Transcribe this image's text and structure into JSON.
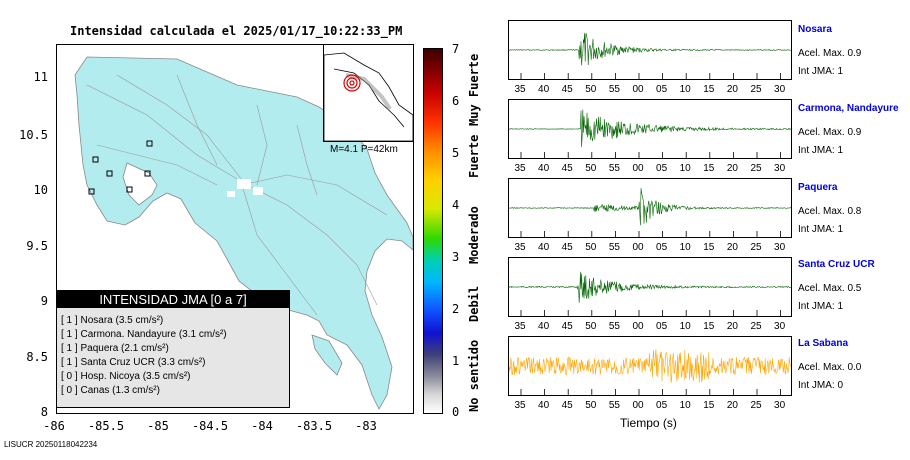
{
  "title": "Intensidad calculada el 2025/01/17_10:22:33_PM",
  "map": {
    "y_ticks": [
      "11",
      "10.5",
      "10",
      "9.5",
      "9",
      "8.5",
      "8"
    ],
    "x_ticks": [
      "-86",
      "-85.5",
      "-85",
      "-84.5",
      "-84",
      "-83.5",
      "-83"
    ],
    "land_color": "#b3ecee",
    "inset_caption": "M=4.1 P=42km"
  },
  "legend": {
    "title": "INTENSIDAD JMA [0 a 7]",
    "rows": [
      {
        "code": "[ 1 ]",
        "text": "Nosara (3.5 cm/s²)"
      },
      {
        "code": "[ 1 ]",
        "text": "Carmona. Nandayure (3.1 cm/s²)"
      },
      {
        "code": "[ 1 ]",
        "text": "Paquera (2.1 cm/s²)"
      },
      {
        "code": "[ 1 ]",
        "text": "Santa Cruz UCR (3.3 cm/s²)"
      },
      {
        "code": "[ 0 ]",
        "text": "Hosp. Nicoya (3.5 cm/s²)"
      },
      {
        "code": "[ 0 ]",
        "text": "Canas (1.3 cm/s²)"
      }
    ]
  },
  "colorbar": {
    "ticks": [
      "7",
      "6",
      "5",
      "4",
      "3",
      "2",
      "1",
      "0"
    ],
    "labels": [
      "Muy Fuerte",
      "Fuerte",
      "Moderado",
      "Debil",
      "No sentido"
    ]
  },
  "footer": "LISUCR 20250118042234",
  "stations": [
    {
      "name": "Nosara",
      "acel": "Acel. Max. 0.9",
      "int": "Int JMA: 1",
      "color": "#006400"
    },
    {
      "name": "Carmona, Nandayure",
      "acel": "Acel. Max. 0.9",
      "int": "Int JMA: 1",
      "color": "#006400"
    },
    {
      "name": "Paquera",
      "acel": "Acel. Max. 0.8",
      "int": "Int JMA: 1",
      "color": "#006400"
    },
    {
      "name": "Santa Cruz UCR",
      "acel": "Acel. Max. 0.5",
      "int": "Int JMA: 1",
      "color": "#006400"
    },
    {
      "name": "La Sabana",
      "acel": "Acel. Max. 0.0",
      "int": "Int JMA: 0",
      "color": "#ffa500"
    }
  ],
  "time_ticks": [
    "35",
    "40",
    "45",
    "50",
    "55",
    "00",
    "05",
    "10",
    "15",
    "20",
    "25",
    "30"
  ],
  "time_label": "Tiempo (s)"
}
